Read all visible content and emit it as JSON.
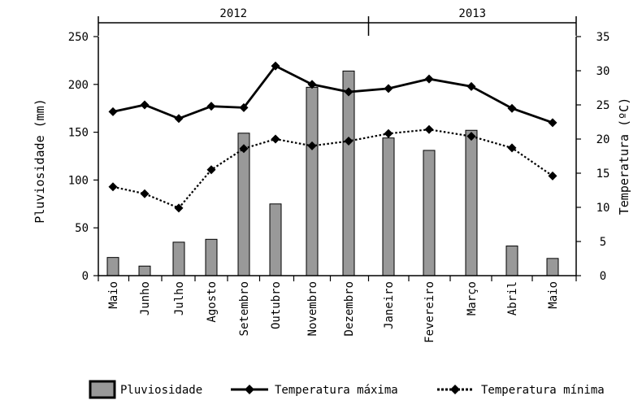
{
  "chart_data": {
    "type": "bar",
    "categories": [
      "Maio",
      "Junho",
      "Julho",
      "Agosto",
      "Setembro",
      "Outubro",
      "Novembro",
      "Dezembro",
      "Janeiro",
      "Fevereiro",
      "Março",
      "Abril",
      "Maio"
    ],
    "year_groups": [
      {
        "label": "2012",
        "from": "Maio",
        "to": "Dezembro"
      },
      {
        "label": "2013",
        "from": "Janeiro",
        "to": "Maio"
      }
    ],
    "ylabel": "Pluviosidade (mm)",
    "y2label": "Temperatura (ºC)",
    "ylim": [
      0,
      250
    ],
    "y2lim": [
      0,
      35
    ],
    "yticks": [
      0,
      50,
      100,
      150,
      200,
      250
    ],
    "y2ticks": [
      0,
      5,
      10,
      15,
      20,
      25,
      30,
      35
    ],
    "series": [
      {
        "name": "Pluviosidade",
        "kind": "bar",
        "axis": "left",
        "color": "#999999",
        "values": [
          19,
          10,
          35,
          38,
          149,
          75,
          197,
          214,
          144,
          131,
          152,
          31,
          18
        ]
      },
      {
        "name": "Temperatura máxima",
        "kind": "line",
        "axis": "right",
        "line_style": "solid",
        "color": "#000000",
        "values": [
          24.0,
          25.0,
          23.0,
          24.8,
          24.6,
          30.7,
          28.0,
          26.9,
          27.4,
          28.8,
          27.7,
          24.5,
          22.4
        ]
      },
      {
        "name": "Temperatura mínima",
        "kind": "line",
        "axis": "right",
        "line_style": "dotted",
        "color": "#000000",
        "values": [
          13.0,
          12.0,
          9.9,
          15.5,
          18.6,
          20.0,
          19.0,
          19.7,
          20.8,
          21.4,
          20.4,
          18.7,
          14.6
        ]
      }
    ],
    "legend_position": "bottom",
    "grid": false
  }
}
